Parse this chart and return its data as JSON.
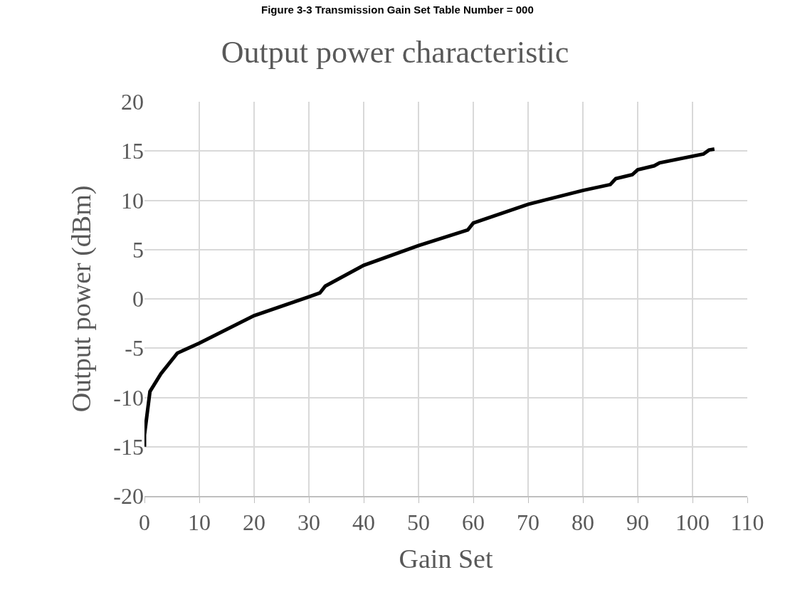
{
  "chart_data": {
    "type": "line",
    "title": "Output power characteristic",
    "xlabel": "Gain Set",
    "ylabel": "Output power (dBm)",
    "annotations": [
      "Figure 3-3 Transmission Gain Set Table Number = 000"
    ],
    "x": [
      0,
      0,
      1,
      3,
      6,
      10,
      20,
      30,
      32,
      33,
      40,
      50,
      59,
      60,
      70,
      80,
      85,
      86,
      89,
      90,
      93,
      94,
      102,
      103,
      104
    ],
    "series": [
      {
        "color": "#000000",
        "values": [
          -15,
          -13.8,
          -9.4,
          -7.6,
          -5.5,
          -4.5,
          -1.7,
          0.2,
          0.6,
          1.3,
          3.4,
          5.4,
          7.0,
          7.7,
          9.6,
          11.0,
          11.6,
          12.2,
          12.6,
          13.1,
          13.5,
          13.8,
          14.7,
          15.1,
          15.2
        ]
      }
    ],
    "xlim": [
      0,
      110
    ],
    "xticks": [
      0,
      10,
      20,
      30,
      40,
      50,
      60,
      70,
      80,
      90,
      100,
      110
    ],
    "ylim": [
      -20,
      20
    ],
    "yticks": [
      -20,
      -15,
      -10,
      -5,
      0,
      5,
      10,
      15,
      20
    ],
    "grid": true,
    "marker": "none",
    "line_style": "solid"
  }
}
